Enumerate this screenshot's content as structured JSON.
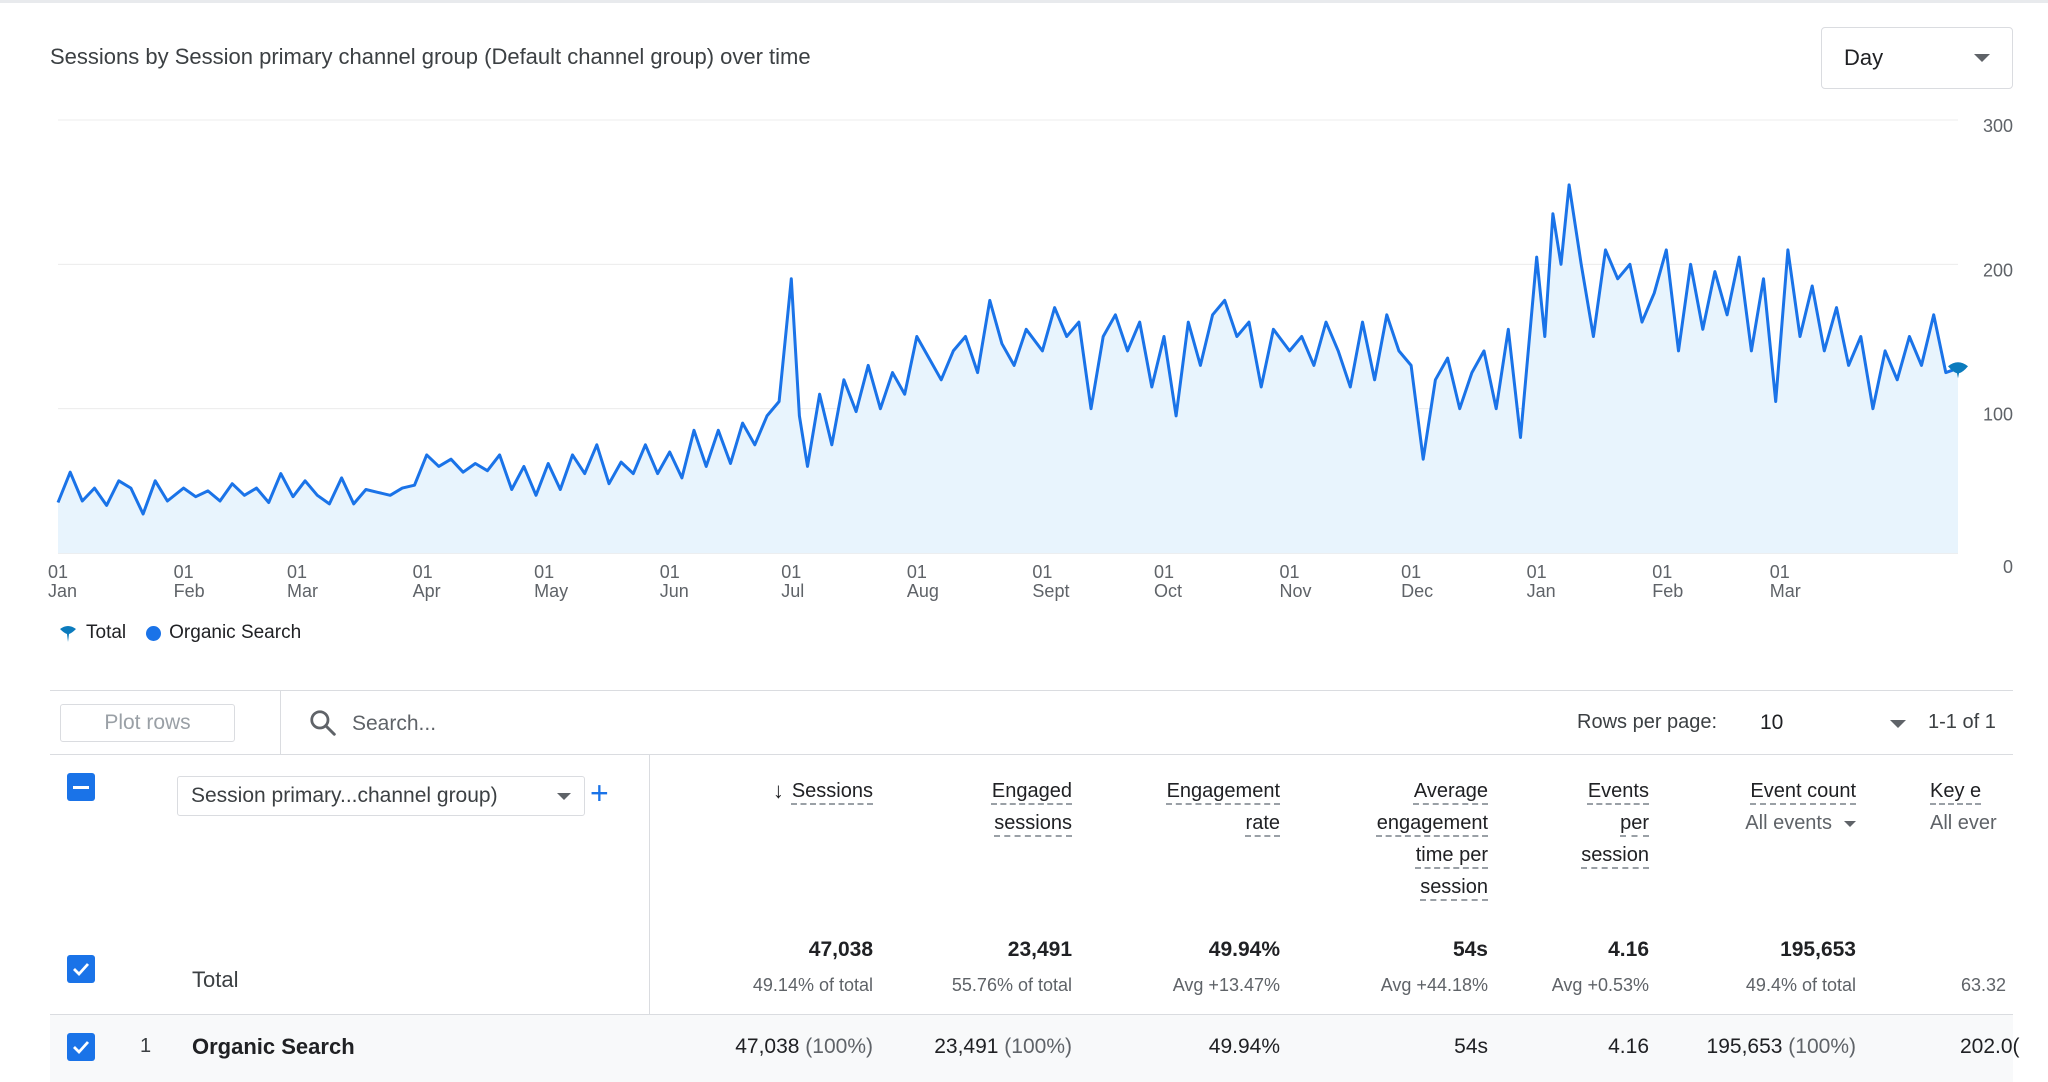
{
  "chart": {
    "title": "Sessions by Session primary channel group (Default channel group) over time",
    "granularity": "Day",
    "legend": [
      {
        "label": "Total",
        "icon": "total-marker-icon",
        "color": "#0b7bbd"
      },
      {
        "label": "Organic Search",
        "icon": "dot-icon",
        "color": "#1a73e8"
      }
    ]
  },
  "chart_data": {
    "type": "area",
    "title": "Sessions by Session primary channel group (Default channel group) over time",
    "xlabel": "",
    "ylabel": "",
    "ylim": [
      0,
      300
    ],
    "y_ticks": [
      "300",
      "200",
      "100",
      "0"
    ],
    "y_axis_side": "right",
    "x_ticks": [
      {
        "date": "2023-01-01",
        "top": "01",
        "bottom": "Jan"
      },
      {
        "date": "2023-02-01",
        "top": "01",
        "bottom": "Feb"
      },
      {
        "date": "2023-03-01",
        "top": "01",
        "bottom": "Mar"
      },
      {
        "date": "2023-04-01",
        "top": "01",
        "bottom": "Apr"
      },
      {
        "date": "2023-05-01",
        "top": "01",
        "bottom": "May"
      },
      {
        "date": "2023-06-01",
        "top": "01",
        "bottom": "Jun"
      },
      {
        "date": "2023-07-01",
        "top": "01",
        "bottom": "Jul"
      },
      {
        "date": "2023-08-01",
        "top": "01",
        "bottom": "Aug"
      },
      {
        "date": "2023-09-01",
        "top": "01",
        "bottom": "Sept"
      },
      {
        "date": "2023-10-01",
        "top": "01",
        "bottom": "Oct"
      },
      {
        "date": "2023-11-01",
        "top": "01",
        "bottom": "Nov"
      },
      {
        "date": "2023-12-01",
        "top": "01",
        "bottom": "Dec"
      },
      {
        "date": "2024-01-01",
        "top": "01",
        "bottom": "Jan"
      },
      {
        "date": "2024-02-01",
        "top": "01",
        "bottom": "Feb"
      },
      {
        "date": "2024-03-01",
        "top": "01",
        "bottom": "Mar"
      }
    ],
    "grid": true,
    "legend_position": "bottom-left",
    "series": [
      {
        "name": "Organic Search",
        "color": "#1a73e8",
        "points": [
          [
            "2023-01-01",
            35
          ],
          [
            "2023-01-04",
            56
          ],
          [
            "2023-01-07",
            36
          ],
          [
            "2023-01-10",
            45
          ],
          [
            "2023-01-13",
            33
          ],
          [
            "2023-01-16",
            50
          ],
          [
            "2023-01-19",
            45
          ],
          [
            "2023-01-22",
            27
          ],
          [
            "2023-01-25",
            50
          ],
          [
            "2023-01-28",
            36
          ],
          [
            "2023-02-01",
            45
          ],
          [
            "2023-02-04",
            39
          ],
          [
            "2023-02-07",
            43
          ],
          [
            "2023-02-10",
            36
          ],
          [
            "2023-02-13",
            48
          ],
          [
            "2023-02-16",
            40
          ],
          [
            "2023-02-19",
            45
          ],
          [
            "2023-02-22",
            35
          ],
          [
            "2023-02-25",
            55
          ],
          [
            "2023-02-28",
            39
          ],
          [
            "2023-03-03",
            50
          ],
          [
            "2023-03-06",
            40
          ],
          [
            "2023-03-09",
            34
          ],
          [
            "2023-03-12",
            52
          ],
          [
            "2023-03-15",
            34
          ],
          [
            "2023-03-18",
            44
          ],
          [
            "2023-03-21",
            42
          ],
          [
            "2023-03-24",
            40
          ],
          [
            "2023-03-27",
            45
          ],
          [
            "2023-03-30",
            47
          ],
          [
            "2023-04-02",
            68
          ],
          [
            "2023-04-05",
            60
          ],
          [
            "2023-04-08",
            65
          ],
          [
            "2023-04-11",
            56
          ],
          [
            "2023-04-14",
            62
          ],
          [
            "2023-04-17",
            57
          ],
          [
            "2023-04-20",
            68
          ],
          [
            "2023-04-23",
            44
          ],
          [
            "2023-04-26",
            60
          ],
          [
            "2023-04-29",
            40
          ],
          [
            "2023-05-02",
            62
          ],
          [
            "2023-05-05",
            44
          ],
          [
            "2023-05-08",
            68
          ],
          [
            "2023-05-11",
            55
          ],
          [
            "2023-05-14",
            75
          ],
          [
            "2023-05-17",
            48
          ],
          [
            "2023-05-20",
            63
          ],
          [
            "2023-05-23",
            55
          ],
          [
            "2023-05-26",
            75
          ],
          [
            "2023-05-29",
            55
          ],
          [
            "2023-06-01",
            70
          ],
          [
            "2023-06-04",
            52
          ],
          [
            "2023-06-07",
            85
          ],
          [
            "2023-06-10",
            60
          ],
          [
            "2023-06-13",
            85
          ],
          [
            "2023-06-16",
            62
          ],
          [
            "2023-06-19",
            90
          ],
          [
            "2023-06-22",
            75
          ],
          [
            "2023-06-25",
            95
          ],
          [
            "2023-06-28",
            105
          ],
          [
            "2023-07-01",
            190
          ],
          [
            "2023-07-03",
            95
          ],
          [
            "2023-07-05",
            60
          ],
          [
            "2023-07-08",
            110
          ],
          [
            "2023-07-11",
            75
          ],
          [
            "2023-07-14",
            120
          ],
          [
            "2023-07-17",
            98
          ],
          [
            "2023-07-20",
            130
          ],
          [
            "2023-07-23",
            100
          ],
          [
            "2023-07-26",
            125
          ],
          [
            "2023-07-29",
            110
          ],
          [
            "2023-08-01",
            150
          ],
          [
            "2023-08-04",
            135
          ],
          [
            "2023-08-07",
            120
          ],
          [
            "2023-08-10",
            140
          ],
          [
            "2023-08-13",
            150
          ],
          [
            "2023-08-16",
            125
          ],
          [
            "2023-08-19",
            175
          ],
          [
            "2023-08-22",
            145
          ],
          [
            "2023-08-25",
            130
          ],
          [
            "2023-08-28",
            155
          ],
          [
            "2023-09-01",
            140
          ],
          [
            "2023-09-04",
            170
          ],
          [
            "2023-09-07",
            150
          ],
          [
            "2023-09-10",
            160
          ],
          [
            "2023-09-13",
            100
          ],
          [
            "2023-09-16",
            150
          ],
          [
            "2023-09-19",
            165
          ],
          [
            "2023-09-22",
            140
          ],
          [
            "2023-09-25",
            160
          ],
          [
            "2023-09-28",
            115
          ],
          [
            "2023-10-01",
            150
          ],
          [
            "2023-10-04",
            95
          ],
          [
            "2023-10-07",
            160
          ],
          [
            "2023-10-10",
            130
          ],
          [
            "2023-10-13",
            165
          ],
          [
            "2023-10-16",
            175
          ],
          [
            "2023-10-19",
            150
          ],
          [
            "2023-10-22",
            160
          ],
          [
            "2023-10-25",
            115
          ],
          [
            "2023-10-28",
            155
          ],
          [
            "2023-11-01",
            140
          ],
          [
            "2023-11-04",
            150
          ],
          [
            "2023-11-07",
            130
          ],
          [
            "2023-11-10",
            160
          ],
          [
            "2023-11-13",
            140
          ],
          [
            "2023-11-16",
            115
          ],
          [
            "2023-11-19",
            160
          ],
          [
            "2023-11-22",
            120
          ],
          [
            "2023-11-25",
            165
          ],
          [
            "2023-11-28",
            140
          ],
          [
            "2023-12-01",
            130
          ],
          [
            "2023-12-04",
            65
          ],
          [
            "2023-12-07",
            120
          ],
          [
            "2023-12-10",
            135
          ],
          [
            "2023-12-13",
            100
          ],
          [
            "2023-12-16",
            125
          ],
          [
            "2023-12-19",
            140
          ],
          [
            "2023-12-22",
            100
          ],
          [
            "2023-12-25",
            155
          ],
          [
            "2023-12-28",
            80
          ],
          [
            "2024-01-01",
            205
          ],
          [
            "2024-01-03",
            150
          ],
          [
            "2024-01-05",
            235
          ],
          [
            "2024-01-07",
            200
          ],
          [
            "2024-01-09",
            255
          ],
          [
            "2024-01-12",
            200
          ],
          [
            "2024-01-15",
            150
          ],
          [
            "2024-01-18",
            210
          ],
          [
            "2024-01-21",
            190
          ],
          [
            "2024-01-24",
            200
          ],
          [
            "2024-01-27",
            160
          ],
          [
            "2024-01-30",
            180
          ],
          [
            "2024-02-02",
            210
          ],
          [
            "2024-02-05",
            140
          ],
          [
            "2024-02-08",
            200
          ],
          [
            "2024-02-11",
            155
          ],
          [
            "2024-02-14",
            195
          ],
          [
            "2024-02-17",
            165
          ],
          [
            "2024-02-20",
            205
          ],
          [
            "2024-02-23",
            140
          ],
          [
            "2024-02-26",
            190
          ],
          [
            "2024-02-29",
            105
          ],
          [
            "2024-03-03",
            210
          ],
          [
            "2024-03-06",
            150
          ],
          [
            "2024-03-09",
            185
          ],
          [
            "2024-03-12",
            140
          ],
          [
            "2024-03-15",
            170
          ],
          [
            "2024-03-18",
            130
          ],
          [
            "2024-03-21",
            150
          ],
          [
            "2024-03-24",
            100
          ],
          [
            "2024-03-27",
            140
          ],
          [
            "2024-03-30",
            120
          ],
          [
            "2024-04-02",
            150
          ],
          [
            "2024-04-05",
            130
          ],
          [
            "2024-04-08",
            165
          ],
          [
            "2024-04-11",
            125
          ],
          [
            "2024-04-14",
            128
          ]
        ]
      }
    ]
  },
  "toolbar": {
    "plot_rows": "Plot rows",
    "search_placeholder": "Search...",
    "rows_per_page_label": "Rows per page:",
    "rows_per_page": "10",
    "pagination": "1-1 of 1"
  },
  "table": {
    "dimension_selector": "Session primary...channel group)",
    "add_dimension": "+",
    "columns": [
      {
        "lines": [
          "Sessions"
        ],
        "sorted": true,
        "sort_icon": "↓"
      },
      {
        "lines": [
          "Engaged",
          "sessions"
        ]
      },
      {
        "lines": [
          "Engagement",
          "rate"
        ]
      },
      {
        "lines": [
          "Average",
          "engagement",
          "time per",
          "session"
        ]
      },
      {
        "lines": [
          "Events",
          "per",
          "session"
        ]
      },
      {
        "lines": [
          "Event count"
        ],
        "sub": "All events"
      },
      {
        "lines": [
          "Key e"
        ],
        "sub": "All ever"
      }
    ],
    "total": {
      "label": "Total",
      "values": [
        "47,038",
        "23,491",
        "49.94%",
        "54s",
        "4.16",
        "195,653",
        ""
      ],
      "subs": [
        "49.14% of total",
        "55.76% of total",
        "Avg +13.47%",
        "Avg +44.18%",
        "Avg +0.53%",
        "49.4% of total",
        "63.32"
      ]
    },
    "rows": [
      {
        "index": "1",
        "name": "Organic Search",
        "values": [
          "47,038",
          "23,491",
          "49.94%",
          "54s",
          "4.16",
          "195,653",
          "202.0("
        ],
        "pcts": [
          "(100%)",
          "(100%)",
          "",
          "",
          "",
          "(100%)",
          ""
        ]
      }
    ]
  }
}
